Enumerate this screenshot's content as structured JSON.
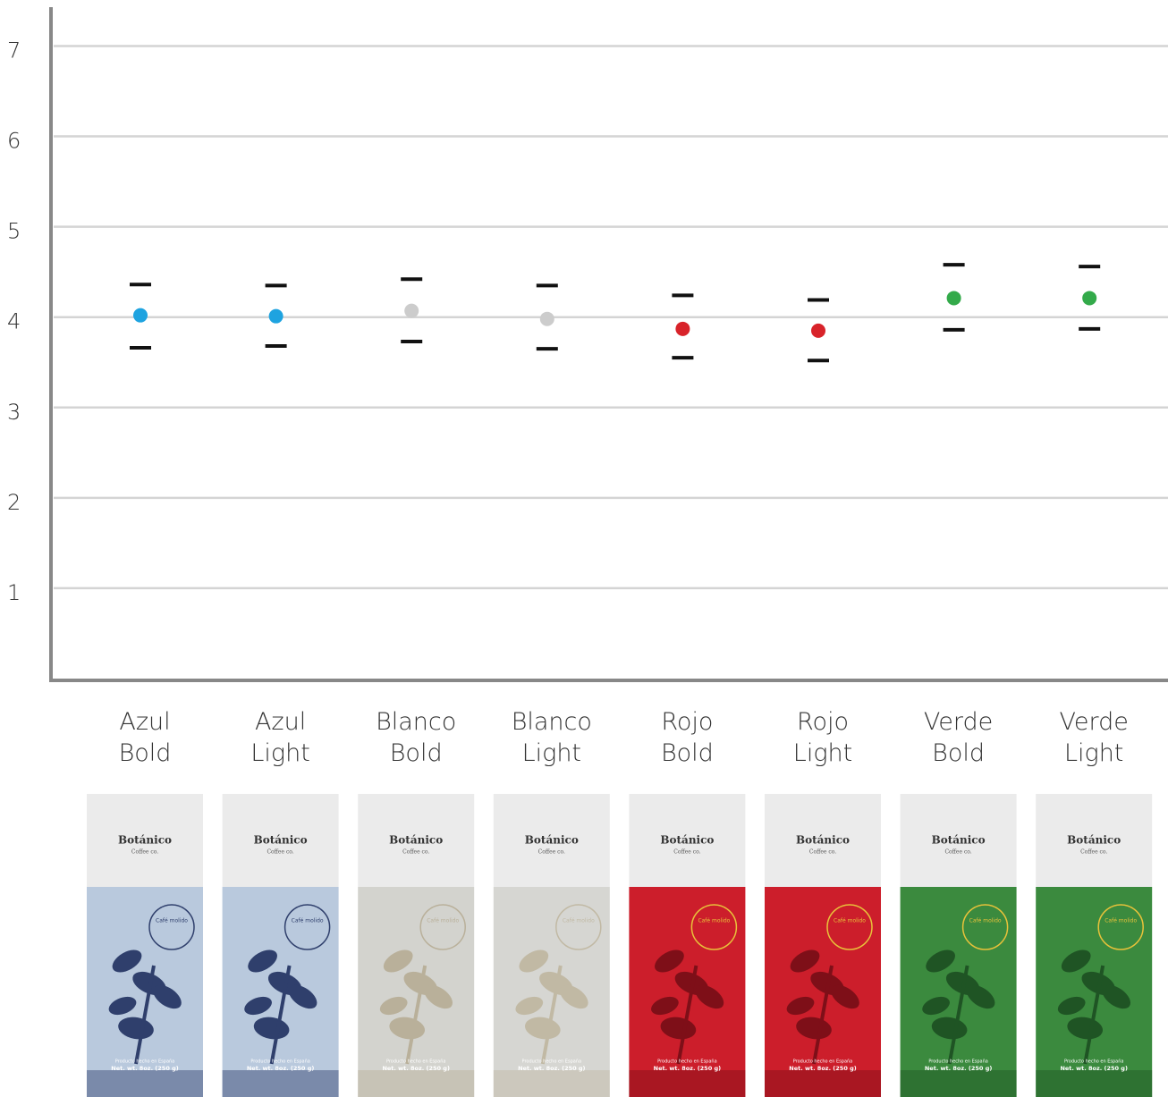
{
  "chart_data": {
    "type": "dot-errorbar",
    "categories": [
      "Azul Bold",
      "Azul Light",
      "Blanco Bold",
      "Blanco Light",
      "Rojo Bold",
      "Rojo Light",
      "Verde Bold",
      "Verde Light"
    ],
    "values": [
      4.02,
      4.01,
      4.07,
      3.98,
      3.87,
      3.85,
      4.21,
      4.21
    ],
    "upper": [
      4.36,
      4.35,
      4.42,
      4.35,
      4.24,
      4.19,
      4.58,
      4.56
    ],
    "lower": [
      3.66,
      3.68,
      3.73,
      3.65,
      3.55,
      3.52,
      3.86,
      3.87
    ],
    "colors": [
      "#1ea3e0",
      "#1ea3e0",
      "#cccccc",
      "#cccccc",
      "#d8232a",
      "#d8232a",
      "#33aa4a",
      "#33aa4a"
    ],
    "errorbar_color": "#111111",
    "ylim": [
      0,
      7.43
    ],
    "yticks": [
      1,
      2,
      3,
      4,
      5,
      6,
      7
    ],
    "grid": true
  },
  "package": {
    "brand": "Botánico",
    "subtitle": "Coffee co.",
    "stamp": "Café molido",
    "origin": "Producto hecho en España",
    "weight": "Net. wt. 8oz. (250 g)"
  }
}
